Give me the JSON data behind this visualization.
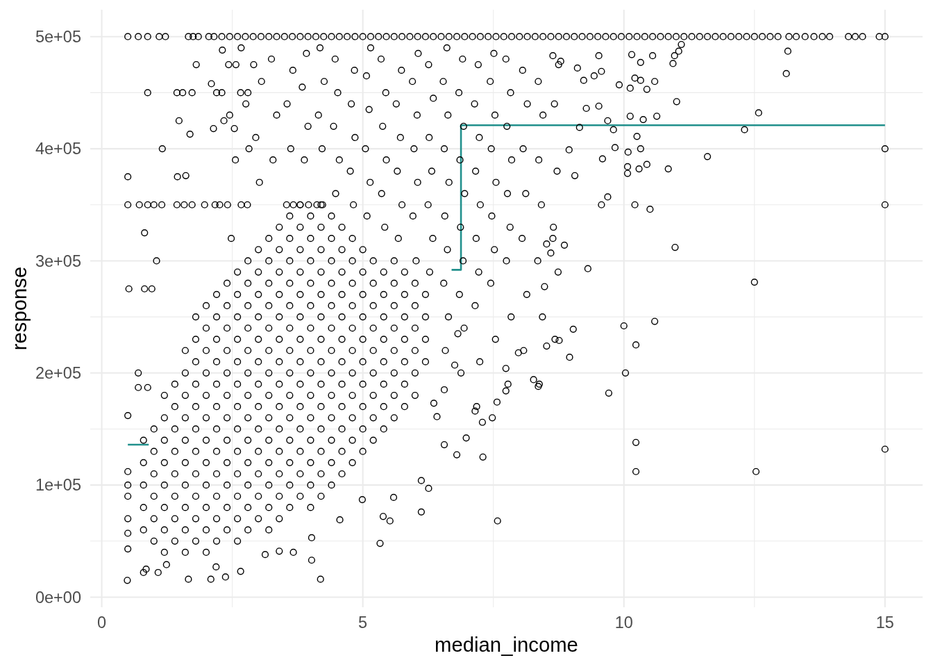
{
  "chart_data": {
    "type": "scatter",
    "xlabel": "median_income",
    "ylabel": "response",
    "xlim": [
      -0.22,
      15.72
    ],
    "ylim": [
      -9000,
      524000
    ],
    "xticks": [
      0,
      {
        "value": 2.5,
        "label": null
      },
      5,
      {
        "value": 7.5,
        "label": null
      },
      10,
      {
        "value": 12.5,
        "label": null
      },
      15
    ],
    "yticks": [
      {
        "value": 0,
        "label": "0e+00"
      },
      {
        "value": 50000,
        "label": null
      },
      {
        "value": 100000,
        "label": "1e+05"
      },
      {
        "value": 150000,
        "label": null
      },
      {
        "value": 200000,
        "label": "2e+05"
      },
      {
        "value": 250000,
        "label": null
      },
      {
        "value": 300000,
        "label": "3e+05"
      },
      {
        "value": 350000,
        "label": null
      },
      {
        "value": 400000,
        "label": "4e+05"
      },
      {
        "value": 450000,
        "label": null
      },
      {
        "value": 500000,
        "label": "5e+05"
      }
    ],
    "grid": true,
    "series": [
      {
        "type": "line",
        "color": "#21908c",
        "x": [
          0.5,
          0.9,
          0.91,
          6.7,
          6.88,
          6.88,
          15
        ],
        "values": [
          136000,
          136000,
          null,
          292000,
          292000,
          421000,
          421000
        ]
      },
      {
        "color": "#000000",
        "marker": "circle",
        "x": [
          0.5,
          0.7,
          0.88,
          1.1,
          1.22,
          1.66,
          1.75,
          1.85,
          2.05,
          2.15,
          2.3,
          2.45,
          2.6,
          2.75,
          2.9,
          3.05,
          3.2,
          3.35,
          3.5,
          3.65,
          3.8,
          3.95,
          4.1,
          4.25,
          4.4,
          4.55,
          4.7,
          4.85,
          5,
          5.15,
          5.3,
          5.45,
          5.6,
          5.75,
          5.9,
          6.05,
          6.2,
          6.35,
          6.5,
          6.65,
          6.8,
          6.95,
          7.1,
          7.25,
          7.4,
          7.55,
          7.7,
          7.85,
          8,
          8.15,
          8.3,
          8.45,
          8.6,
          8.75,
          8.9,
          9.05,
          9.2,
          9.35,
          9.5,
          9.65,
          9.8,
          9.95,
          10.1,
          10.25,
          10.4,
          10.55,
          10.7,
          10.85,
          11,
          11.15,
          11.3,
          11.45,
          11.6,
          11.75,
          11.9,
          12.05,
          12.2,
          12.35,
          12.5,
          12.65,
          12.8,
          12.95,
          13.16,
          13.3,
          13.47,
          13.64,
          13.8,
          13.94,
          14.3,
          14.43,
          14.57,
          14.89,
          15,
          0.5,
          0.72,
          0.88,
          1,
          1.15,
          1.44,
          1.58,
          1.73,
          1.97,
          2.17,
          2.26,
          2.41,
          2.67,
          2.79,
          3.54,
          3.67,
          3.8,
          3.96,
          4.12,
          4.23,
          0.88,
          1.44,
          1.55,
          1.73,
          2.2,
          2.3,
          2.66,
          2.8,
          0.5,
          1.16,
          0.52,
          0.82,
          0.96,
          1.05,
          0.82,
          0.49,
          0.5,
          0.5,
          0.5,
          0.5,
          0.5,
          0.5,
          0.5,
          1.81,
          2.31,
          2.67,
          1.48,
          1.69,
          1.45,
          1.61,
          2.1,
          2.43,
          2.57,
          2.91,
          2.34,
          2.14,
          2.54,
          1.66,
          2.09,
          2.37,
          1.08,
          0.8,
          0.85,
          3.67,
          3.4,
          3.13,
          4.02,
          5.33,
          5.59,
          5.39,
          5.52,
          6.12,
          6.26,
          4.56,
          4.99,
          2.66,
          2.19,
          1.24,
          4.19,
          4.02,
          7.58,
          0.7,
          0.88,
          0.7,
          2.48,
          2.56,
          2.45,
          2.82,
          2.76,
          3.02,
          2.95,
          3.06,
          3.28,
          3.35,
          3.25,
          3.62,
          3.55,
          3.66,
          3.88,
          3.95,
          3.84,
          3.92,
          4.22,
          4.15,
          4.26,
          4.18,
          4.48,
          4.55,
          4.44,
          4.52,
          4.47,
          4.82,
          4.76,
          4.85,
          4.78,
          4.84,
          5.08,
          5.14,
          5.05,
          5.12,
          5.07,
          5.15,
          5.42,
          5.36,
          5.45,
          5.38,
          5.44,
          5.35,
          5.68,
          5.75,
          5.66,
          5.72,
          5.64,
          5.74,
          6.02,
          5.96,
          6.05,
          5.98,
          6.04,
          5.95,
          6.06,
          6.28,
          6.34,
          6.25,
          6.32,
          6.27,
          6.35,
          6.26,
          6.58,
          6.64,
          6.55,
          6.62,
          6.57,
          6.65,
          6.56,
          6.63,
          6.54,
          6.61,
          6.88,
          6.94,
          6.85,
          6.92,
          6.87,
          6.95,
          6.86,
          6.93,
          6.84,
          6.91,
          7.18,
          7.24,
          7.15,
          7.22,
          7.17,
          7.25,
          7.16,
          7.23,
          7.14,
          7.21,
          7.48,
          7.54,
          7.45,
          7.52,
          7.47,
          7.55,
          7.46,
          7.53,
          7.44,
          7.51,
          7.78,
          7.84,
          7.75,
          7.82,
          7.77,
          7.85,
          7.76,
          7.83,
          7.74,
          8.08,
          8.14,
          8.05,
          8.12,
          8.07,
          8.15,
          8.06,
          8.38,
          8.44,
          8.35,
          8.42,
          8.37,
          8.45,
          8.36,
          8.68,
          8.74,
          8.65,
          8.72,
          8.67,
          8.75,
          13.14,
          13.11,
          12.58,
          12.31,
          11.6,
          15,
          15,
          11.01,
          10.85,
          10.5,
          10.21,
          9.57,
          9.69,
          10.07,
          10.07,
          10.29,
          10.44,
          10.08,
          10.32,
          9.83,
          9.59,
          10.25,
          10.63,
          10.37,
          10.12,
          9.8,
          9.69,
          9.52,
          9.28,
          9.15,
          8.95,
          10.59,
          10.44,
          10.32,
          10.21,
          10.12,
          10.55,
          10.15,
          10.32,
          9.91,
          9.57,
          9.52,
          9.43,
          9.23,
          9.11,
          8.79,
          8.64,
          10.97,
          10.94,
          11.05,
          11.1,
          9.06,
          10.98,
          9.31,
          12.5,
          9.03,
          10,
          10.59,
          10.23,
          8.76,
          8.52,
          8.96,
          10.03,
          9.71,
          10.23,
          10.23,
          12.53,
          15,
          8.86,
          8.64,
          8.52,
          8.6,
          8.48,
          6.12,
          6.56,
          6.42,
          6.76,
          6.56,
          6.82,
          6.36,
          7.3,
          6.8,
          6.98,
          7.29,
          7.15,
          7.57,
          7.74,
          7.98,
          8.36,
          8.27,
          7.74,
          0.8,
          0.8,
          0.8,
          0.8,
          0.8,
          1,
          1,
          1,
          1,
          1,
          1,
          1.2,
          1.2,
          1.2,
          1.2,
          1.2,
          1.2,
          1.2,
          1.2,
          1.4,
          1.4,
          1.4,
          1.4,
          1.4,
          1.4,
          1.4,
          1.4,
          1.6,
          1.6,
          1.6,
          1.6,
          1.6,
          1.6,
          1.6,
          1.6,
          1.6,
          1.6,
          1.8,
          1.8,
          1.8,
          1.8,
          1.8,
          1.8,
          1.8,
          1.8,
          1.8,
          1.8,
          1.8,
          2,
          2,
          2,
          2,
          2,
          2,
          2,
          2,
          2,
          2,
          2,
          2,
          2.2,
          2.2,
          2.2,
          2.2,
          2.2,
          2.2,
          2.2,
          2.2,
          2.2,
          2.2,
          2.2,
          2.2,
          2.4,
          2.4,
          2.4,
          2.4,
          2.4,
          2.4,
          2.4,
          2.4,
          2.4,
          2.4,
          2.4,
          2.4,
          2.6,
          2.6,
          2.6,
          2.6,
          2.6,
          2.6,
          2.6,
          2.6,
          2.6,
          2.6,
          2.6,
          2.6,
          2.6,
          2.8,
          2.8,
          2.8,
          2.8,
          2.8,
          2.8,
          2.8,
          2.8,
          2.8,
          2.8,
          2.8,
          2.8,
          2.8,
          3,
          3,
          3,
          3,
          3,
          3,
          3,
          3,
          3,
          3,
          3,
          3,
          3,
          3.2,
          3.2,
          3.2,
          3.2,
          3.2,
          3.2,
          3.2,
          3.2,
          3.2,
          3.2,
          3.2,
          3.2,
          3.2,
          3.2,
          3.4,
          3.4,
          3.4,
          3.4,
          3.4,
          3.4,
          3.4,
          3.4,
          3.4,
          3.4,
          3.4,
          3.4,
          3.4,
          3.4,
          3.6,
          3.6,
          3.6,
          3.6,
          3.6,
          3.6,
          3.6,
          3.6,
          3.6,
          3.6,
          3.6,
          3.6,
          3.6,
          3.6,
          3.8,
          3.8,
          3.8,
          3.8,
          3.8,
          3.8,
          3.8,
          3.8,
          3.8,
          3.8,
          3.8,
          3.8,
          3.8,
          3.8,
          4,
          4,
          4,
          4,
          4,
          4,
          4,
          4,
          4,
          4,
          4,
          4,
          4,
          4,
          4.2,
          4.2,
          4.2,
          4.2,
          4.2,
          4.2,
          4.2,
          4.2,
          4.2,
          4.2,
          4.2,
          4.2,
          4.2,
          4.2,
          4.4,
          4.4,
          4.4,
          4.4,
          4.4,
          4.4,
          4.4,
          4.4,
          4.4,
          4.4,
          4.4,
          4.4,
          4.4,
          4.6,
          4.6,
          4.6,
          4.6,
          4.6,
          4.6,
          4.6,
          4.6,
          4.6,
          4.6,
          4.6,
          4.6,
          4.8,
          4.8,
          4.8,
          4.8,
          4.8,
          4.8,
          4.8,
          4.8,
          4.8,
          4.8,
          4.8,
          5,
          5,
          5,
          5,
          5,
          5,
          5,
          5,
          5,
          5,
          5.2,
          5.2,
          5.2,
          5.2,
          5.2,
          5.2,
          5.2,
          5.2,
          5.2,
          5.4,
          5.4,
          5.4,
          5.4,
          5.4,
          5.4,
          5.4,
          5.4,
          5.6,
          5.6,
          5.6,
          5.6,
          5.6,
          5.6,
          5.6,
          5.6,
          5.8,
          5.8,
          5.8,
          5.8,
          5.8,
          5.8,
          5.8,
          6,
          6,
          6,
          6,
          6,
          6,
          6.2,
          6.2,
          6.2,
          6.2
        ],
        "values": [
          500000,
          500000,
          500000,
          500000,
          500000,
          500000,
          500000,
          500000,
          500000,
          500000,
          500000,
          500000,
          500000,
          500000,
          500000,
          500000,
          500000,
          500000,
          500000,
          500000,
          500000,
          500000,
          500000,
          500000,
          500000,
          500000,
          500000,
          500000,
          500000,
          500000,
          500000,
          500000,
          500000,
          500000,
          500000,
          500000,
          500000,
          500000,
          500000,
          500000,
          500000,
          500000,
          500000,
          500000,
          500000,
          500000,
          500000,
          500000,
          500000,
          500000,
          500000,
          500000,
          500000,
          500000,
          500000,
          500000,
          500000,
          500000,
          500000,
          500000,
          500000,
          500000,
          500000,
          500000,
          500000,
          500000,
          500000,
          500000,
          500000,
          500000,
          500000,
          500000,
          500000,
          500000,
          500000,
          500000,
          500000,
          500000,
          500000,
          500000,
          500000,
          500000,
          500000,
          500000,
          500000,
          500000,
          500000,
          500000,
          500000,
          500000,
          500000,
          500000,
          500000,
          350000,
          350000,
          350000,
          350000,
          350000,
          350000,
          350000,
          350000,
          350000,
          350000,
          350000,
          350000,
          350000,
          350000,
          350000,
          350000,
          350000,
          350000,
          350000,
          350000,
          450000,
          450000,
          450000,
          450000,
          450000,
          450000,
          450000,
          450000,
          375000,
          400000,
          275000,
          275000,
          275000,
          300000,
          325000,
          15000,
          162000,
          112000,
          100000,
          90000,
          70000,
          57000,
          43000,
          475000,
          488000,
          490000,
          425000,
          413000,
          375000,
          376000,
          458000,
          475000,
          475000,
          475000,
          425000,
          418000,
          418000,
          16000,
          16000,
          18000,
          22000,
          22000,
          25000,
          40000,
          41000,
          38000,
          53000,
          48000,
          89000,
          72000,
          68000,
          76000,
          97000,
          69000,
          87000,
          23000,
          27000,
          29000,
          16000,
          33000,
          68000,
          187000,
          187000,
          200000,
          320000,
          390000,
          430000,
          400000,
          440000,
          370000,
          410000,
          460000,
          390000,
          430000,
          480000,
          400000,
          440000,
          470000,
          390000,
          420000,
          455000,
          485000,
          400000,
          430000,
          460000,
          490000,
          360000,
          390000,
          420000,
          450000,
          480000,
          350000,
          380000,
          410000,
          440000,
          470000,
          340000,
          370000,
          400000,
          435000,
          465000,
          490000,
          330000,
          360000,
          390000,
          420000,
          450000,
          480000,
          320000,
          350000,
          380000,
          410000,
          440000,
          470000,
          300000,
          340000,
          370000,
          400000,
          430000,
          460000,
          485000,
          290000,
          320000,
          350000,
          380000,
          410000,
          445000,
          475000,
          220000,
          250000,
          280000,
          310000,
          340000,
          370000,
          400000,
          430000,
          460000,
          490000,
          200000,
          240000,
          270000,
          300000,
          330000,
          360000,
          390000,
          420000,
          450000,
          480000,
          170000,
          210000,
          260000,
          290000,
          320000,
          350000,
          380000,
          410000,
          440000,
          475000,
          160000,
          230000,
          280000,
          310000,
          340000,
          370000,
          400000,
          430000,
          460000,
          485000,
          190000,
          250000,
          300000,
          330000,
          360000,
          390000,
          420000,
          450000,
          480000,
          220000,
          270000,
          320000,
          360000,
          400000,
          440000,
          470000,
          190000,
          250000,
          300000,
          350000,
          390000,
          430000,
          460000,
          230000,
          290000,
          330000,
          380000,
          440000,
          475000,
          487000,
          467000,
          432000,
          417000,
          393000,
          400000,
          350000,
          442000,
          382000,
          346000,
          350000,
          350000,
          357000,
          378000,
          384000,
          382000,
          386000,
          397000,
          400000,
          401000,
          391000,
          411000,
          429000,
          426000,
          429000,
          417000,
          425000,
          438000,
          436000,
          419000,
          399000,
          460000,
          453000,
          461000,
          463000,
          454000,
          483000,
          484000,
          477000,
          457000,
          469000,
          483000,
          465000,
          461000,
          472000,
          478000,
          483000,
          483000,
          476000,
          487000,
          493000,
          376000,
          312000,
          293000,
          281000,
          239000,
          242000,
          246000,
          225000,
          229000,
          224000,
          214000,
          200000,
          182000,
          138000,
          112000,
          112000,
          132000,
          314000,
          320000,
          315000,
          307000,
          277000,
          104000,
          136000,
          161000,
          207000,
          185000,
          235000,
          173000,
          125000,
          127000,
          142000,
          156000,
          166000,
          174000,
          204000,
          218000,
          188000,
          194000,
          184000,
          60000,
          80000,
          100000,
          120000,
          140000,
          50000,
          70000,
          90000,
          110000,
          130000,
          150000,
          40000,
          60000,
          80000,
          100000,
          120000,
          140000,
          160000,
          180000,
          50000,
          70000,
          90000,
          110000,
          130000,
          150000,
          170000,
          190000,
          40000,
          60000,
          80000,
          100000,
          120000,
          140000,
          160000,
          180000,
          200000,
          220000,
          50000,
          70000,
          90000,
          110000,
          130000,
          150000,
          170000,
          190000,
          210000,
          230000,
          250000,
          40000,
          60000,
          80000,
          100000,
          120000,
          140000,
          160000,
          180000,
          200000,
          220000,
          240000,
          260000,
          50000,
          70000,
          90000,
          110000,
          130000,
          150000,
          170000,
          190000,
          210000,
          230000,
          250000,
          270000,
          60000,
          80000,
          100000,
          120000,
          140000,
          160000,
          180000,
          200000,
          220000,
          240000,
          260000,
          280000,
          50000,
          70000,
          90000,
          110000,
          130000,
          150000,
          170000,
          190000,
          210000,
          230000,
          250000,
          270000,
          290000,
          60000,
          80000,
          100000,
          120000,
          140000,
          160000,
          180000,
          200000,
          220000,
          240000,
          260000,
          280000,
          300000,
          70000,
          90000,
          110000,
          130000,
          150000,
          170000,
          190000,
          210000,
          230000,
          250000,
          270000,
          290000,
          310000,
          60000,
          80000,
          100000,
          120000,
          140000,
          160000,
          180000,
          200000,
          220000,
          240000,
          260000,
          280000,
          300000,
          320000,
          70000,
          90000,
          110000,
          130000,
          150000,
          170000,
          190000,
          210000,
          230000,
          250000,
          270000,
          290000,
          310000,
          330000,
          80000,
          100000,
          120000,
          140000,
          160000,
          180000,
          200000,
          220000,
          240000,
          260000,
          280000,
          300000,
          320000,
          340000,
          90000,
          110000,
          130000,
          150000,
          170000,
          190000,
          210000,
          230000,
          250000,
          270000,
          290000,
          310000,
          330000,
          350000,
          80000,
          100000,
          120000,
          140000,
          160000,
          180000,
          200000,
          220000,
          240000,
          260000,
          280000,
          300000,
          320000,
          340000,
          90000,
          110000,
          130000,
          150000,
          170000,
          190000,
          210000,
          230000,
          250000,
          270000,
          290000,
          310000,
          330000,
          350000,
          100000,
          120000,
          140000,
          160000,
          180000,
          200000,
          220000,
          240000,
          260000,
          280000,
          300000,
          320000,
          340000,
          110000,
          130000,
          150000,
          170000,
          190000,
          210000,
          230000,
          250000,
          270000,
          290000,
          310000,
          330000,
          120000,
          140000,
          160000,
          180000,
          200000,
          220000,
          240000,
          260000,
          280000,
          300000,
          320000,
          130000,
          150000,
          170000,
          190000,
          210000,
          230000,
          250000,
          270000,
          290000,
          310000,
          140000,
          160000,
          180000,
          200000,
          220000,
          240000,
          260000,
          280000,
          300000,
          150000,
          170000,
          190000,
          210000,
          230000,
          250000,
          270000,
          290000,
          160000,
          180000,
          200000,
          220000,
          240000,
          260000,
          280000,
          300000,
          170000,
          190000,
          210000,
          230000,
          250000,
          270000,
          290000,
          180000,
          200000,
          220000,
          240000,
          260000,
          280000,
          210000,
          230000,
          250000,
          270000
        ]
      }
    ]
  }
}
